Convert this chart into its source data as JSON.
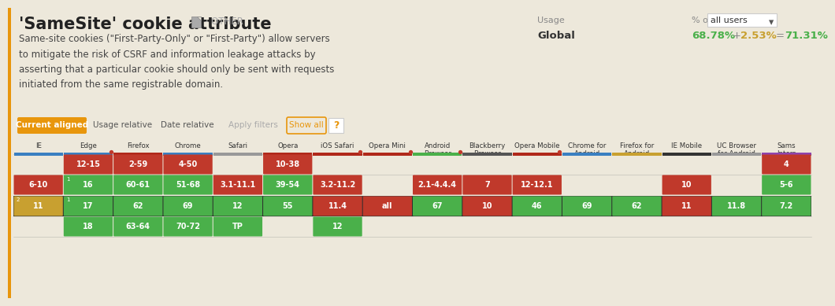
{
  "bg_color": "#ede8db",
  "title": "'SameSite' cookie attribute",
  "title_color": "#222222",
  "subtitle": "- OTHER",
  "description": "Same-site cookies (\"First-Party-Only\" or \"First-Party\") allow servers\nto mitigate the risk of CSRF and information leakage attacks by\nasserting that a particular cookie should only be sent with requests\ninitiated from the same registrable domain.",
  "usage_label": "Usage",
  "global_label": "Global",
  "pct_label": "% of",
  "users_label": "all users",
  "stat_green": "68.78%",
  "stat_plus": "+",
  "stat_yellow": "2.53%",
  "stat_eq": "=",
  "stat_total": "71.31%",
  "button_current": "Current aligned",
  "button_usage": "Usage relative",
  "button_date": "Date relative",
  "button_apply": "Apply filters",
  "button_showall": "Show all",
  "browsers": [
    "IE",
    "Edge",
    "Firefox",
    "Chrome",
    "Safari",
    "Opera",
    "iOS Safari",
    "Opera Mini",
    "Android\nBrowser",
    "Blackberry\nBrowser",
    "Opera Mobile",
    "Chrome for\nAndroid",
    "Firefox for\nAndroid",
    "IE Mobile",
    "UC Browser\nfor Android",
    "Sams\nInterr"
  ],
  "browser_bar_colors": [
    "#3a7fc1",
    "#3a7fc1",
    "#b0281a",
    "#3a7fc1",
    "#999999",
    "#b0281a",
    "#b0281a",
    "#b0281a",
    "#4ab04a",
    "#555555",
    "#b0281a",
    "#3a7fc1",
    "#c8a030",
    "#333333",
    "#999999",
    "#8e44ad"
  ],
  "browser_dots": [
    1,
    6,
    7,
    8,
    10
  ],
  "rows": [
    {
      "cells": [
        {
          "col": 1,
          "text": "12-15",
          "color": "#c0392b",
          "text_color": "#ffffff"
        },
        {
          "col": 2,
          "text": "2-59",
          "color": "#c0392b",
          "text_color": "#ffffff"
        },
        {
          "col": 3,
          "text": "4-50",
          "color": "#c0392b",
          "text_color": "#ffffff"
        },
        {
          "col": 5,
          "text": "10-38",
          "color": "#c0392b",
          "text_color": "#ffffff"
        },
        {
          "col": 15,
          "text": "4",
          "color": "#c0392b",
          "text_color": "#ffffff"
        }
      ]
    },
    {
      "cells": [
        {
          "col": 0,
          "text": "6-10",
          "color": "#c0392b",
          "text_color": "#ffffff"
        },
        {
          "col": 1,
          "text": "16",
          "color": "#4ab04a",
          "text_color": "#ffffff",
          "note": "1"
        },
        {
          "col": 2,
          "text": "60-61",
          "color": "#4ab04a",
          "text_color": "#ffffff"
        },
        {
          "col": 3,
          "text": "51-68",
          "color": "#4ab04a",
          "text_color": "#ffffff"
        },
        {
          "col": 4,
          "text": "3.1-11.1",
          "color": "#c0392b",
          "text_color": "#ffffff"
        },
        {
          "col": 5,
          "text": "39-54",
          "color": "#4ab04a",
          "text_color": "#ffffff"
        },
        {
          "col": 6,
          "text": "3.2-11.2",
          "color": "#c0392b",
          "text_color": "#ffffff"
        },
        {
          "col": 8,
          "text": "2.1-4.4.4",
          "color": "#c0392b",
          "text_color": "#ffffff"
        },
        {
          "col": 9,
          "text": "7",
          "color": "#c0392b",
          "text_color": "#ffffff"
        },
        {
          "col": 10,
          "text": "12-12.1",
          "color": "#c0392b",
          "text_color": "#ffffff"
        },
        {
          "col": 13,
          "text": "10",
          "color": "#c0392b",
          "text_color": "#ffffff"
        },
        {
          "col": 15,
          "text": "5-6",
          "color": "#4ab04a",
          "text_color": "#ffffff"
        }
      ]
    },
    {
      "cells": [
        {
          "col": 0,
          "text": "11",
          "color": "#c8a030",
          "text_color": "#ffffff",
          "note": "2"
        },
        {
          "col": 1,
          "text": "17",
          "color": "#4ab04a",
          "text_color": "#ffffff",
          "note": "1"
        },
        {
          "col": 2,
          "text": "62",
          "color": "#4ab04a",
          "text_color": "#ffffff"
        },
        {
          "col": 3,
          "text": "69",
          "color": "#4ab04a",
          "text_color": "#ffffff"
        },
        {
          "col": 4,
          "text": "12",
          "color": "#4ab04a",
          "text_color": "#ffffff"
        },
        {
          "col": 5,
          "text": "55",
          "color": "#4ab04a",
          "text_color": "#ffffff"
        },
        {
          "col": 6,
          "text": "11.4",
          "color": "#c0392b",
          "text_color": "#ffffff"
        },
        {
          "col": 7,
          "text": "all",
          "color": "#c0392b",
          "text_color": "#ffffff"
        },
        {
          "col": 8,
          "text": "67",
          "color": "#4ab04a",
          "text_color": "#ffffff"
        },
        {
          "col": 9,
          "text": "10",
          "color": "#c0392b",
          "text_color": "#ffffff"
        },
        {
          "col": 10,
          "text": "46",
          "color": "#4ab04a",
          "text_color": "#ffffff"
        },
        {
          "col": 11,
          "text": "69",
          "color": "#4ab04a",
          "text_color": "#ffffff"
        },
        {
          "col": 12,
          "text": "62",
          "color": "#4ab04a",
          "text_color": "#ffffff"
        },
        {
          "col": 13,
          "text": "11",
          "color": "#c0392b",
          "text_color": "#ffffff"
        },
        {
          "col": 14,
          "text": "11.8",
          "color": "#4ab04a",
          "text_color": "#ffffff"
        },
        {
          "col": 15,
          "text": "7.2",
          "color": "#4ab04a",
          "text_color": "#ffffff"
        }
      ]
    },
    {
      "cells": [
        {
          "col": 1,
          "text": "18",
          "color": "#4ab04a",
          "text_color": "#ffffff"
        },
        {
          "col": 2,
          "text": "63-64",
          "color": "#4ab04a",
          "text_color": "#ffffff"
        },
        {
          "col": 3,
          "text": "70-72",
          "color": "#4ab04a",
          "text_color": "#ffffff"
        },
        {
          "col": 4,
          "text": "TP",
          "color": "#4ab04a",
          "text_color": "#ffffff"
        },
        {
          "col": 6,
          "text": "12",
          "color": "#4ab04a",
          "text_color": "#ffffff"
        }
      ]
    }
  ],
  "current_row": 2,
  "left_orange_bar": true
}
